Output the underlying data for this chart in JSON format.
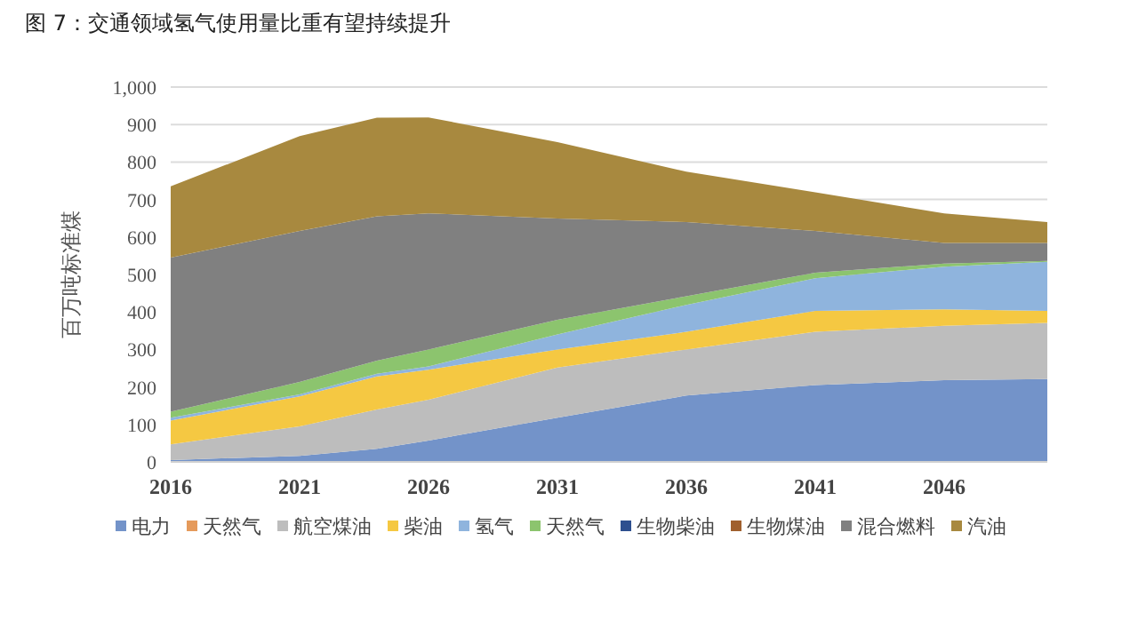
{
  "chart_data": {
    "type": "area",
    "stacked": true,
    "title": "图 7：交通领域氢气使用量比重有望持续提升",
    "ylabel": "百万吨标准煤",
    "x": [
      2016,
      2021,
      2024,
      2026,
      2031,
      2036,
      2041,
      2046,
      2050
    ],
    "series": [
      {
        "name": "电力",
        "color": "#7393c9",
        "values": [
          5,
          16,
          35,
          57,
          118,
          177,
          205,
          218,
          221
        ]
      },
      {
        "name": "天然气",
        "color": "#e59a5b",
        "values": [
          null,
          null,
          null,
          null,
          null,
          null,
          null,
          null,
          null
        ]
      },
      {
        "name": "航空煤油",
        "color": "#bdbdbd",
        "values": [
          42,
          79,
          105,
          109,
          134,
          123,
          142,
          145,
          150
        ]
      },
      {
        "name": "柴油",
        "color": "#f5c842",
        "values": [
          63,
          80,
          88,
          80,
          48,
          47,
          56,
          44,
          32
        ]
      },
      {
        "name": "氢气",
        "color": "#8fb4dd",
        "values": [
          8,
          5,
          7,
          9,
          40,
          72,
          87,
          114,
          131
        ]
      },
      {
        "name": "天然气",
        "color": "#8cc46e",
        "values": [
          16,
          33,
          35,
          45,
          39,
          23,
          15,
          8,
          2
        ]
      },
      {
        "name": "生物柴油",
        "color": "#2e4f8f",
        "values": [
          null,
          null,
          null,
          null,
          null,
          null,
          null,
          null,
          null
        ]
      },
      {
        "name": "生物煤油",
        "color": "#a0602e",
        "values": [
          null,
          null,
          null,
          null,
          null,
          null,
          null,
          null,
          null
        ]
      },
      {
        "name": "混合燃料",
        "color": "#808080",
        "values": [
          411,
          403,
          385,
          363,
          270,
          198,
          111,
          55,
          48
        ]
      },
      {
        "name": "汽油",
        "color": "#a8893f",
        "values": [
          190,
          253,
          263,
          256,
          204,
          134,
          103,
          79,
          56
        ]
      }
    ],
    "xlim": [
      2016,
      2050
    ],
    "xticks": [
      2016,
      2021,
      2026,
      2031,
      2036,
      2041,
      2046
    ],
    "ylim": [
      0,
      1000
    ],
    "yticks": [
      0,
      100,
      200,
      300,
      400,
      500,
      600,
      700,
      800,
      900,
      {
        "value": 1000,
        "label": "1,000"
      }
    ],
    "grid": "y",
    "legend": "bottom"
  }
}
